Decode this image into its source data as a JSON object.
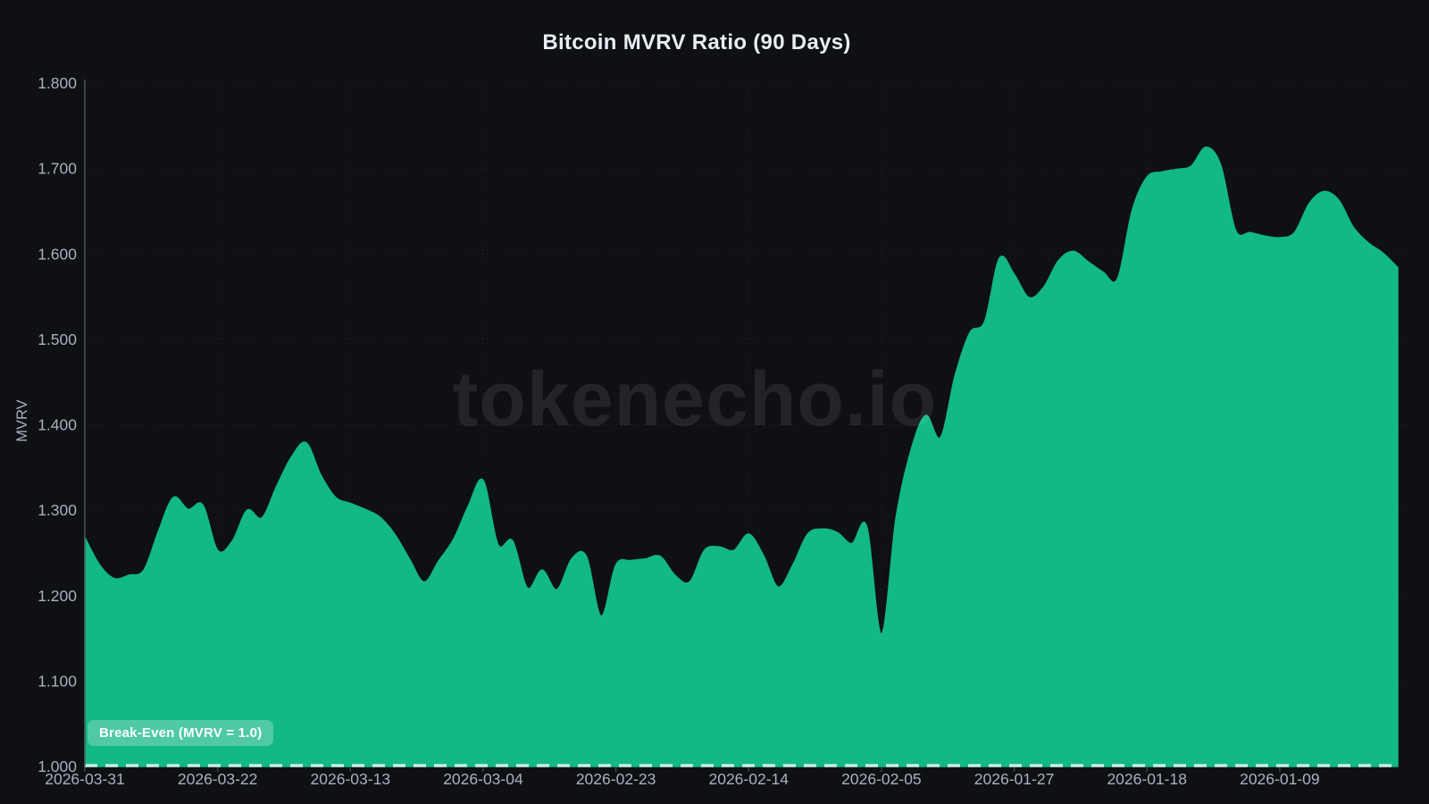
{
  "title": "Bitcoin MVRV Ratio (90 Days)",
  "watermark": "tokenecho.io",
  "break_even_label": "Break-Even (MVRV = 1.0)",
  "colors": {
    "background": "#0e1014",
    "area_fill": "#12b886",
    "grid_line": "rgba(255,255,255,0.09)",
    "y_axis_line": "#4b525c",
    "tick_text": "#a9b1bc",
    "title_text": "#e7edf3",
    "break_even_dash": "rgba(245,250,247,0.8)",
    "watermark_text": "rgba(255,255,255,0.085)",
    "pill_background": "rgba(255,255,255,0.26)"
  },
  "chart_data": {
    "type": "area",
    "title": "Bitcoin MVRV Ratio (90 Days)",
    "xlabel": "",
    "ylabel": "MVRV",
    "ylim": [
      1.0,
      1.8
    ],
    "grid": true,
    "x_axis_note": "time axis reversed: newest date on left",
    "y_ticks": [
      1.0,
      1.1,
      1.2,
      1.3,
      1.4,
      1.5,
      1.6,
      1.7,
      1.8
    ],
    "y_tick_labels": [
      "1.000",
      "1.100",
      "1.200",
      "1.300",
      "1.400",
      "1.500",
      "1.600",
      "1.700",
      "1.800"
    ],
    "x_tick_labels": [
      "2026-03-31",
      "2026-03-22",
      "2026-03-13",
      "2026-03-04",
      "2026-02-23",
      "2026-02-14",
      "2026-02-05",
      "2026-01-27",
      "2026-01-18",
      "2026-01-09"
    ],
    "x_tick_indices": [
      0,
      9,
      18,
      27,
      36,
      45,
      54,
      63,
      72,
      81
    ],
    "break_even_level": 1.0,
    "x": [
      "2026-03-31",
      "2026-03-30",
      "2026-03-29",
      "2026-03-28",
      "2026-03-27",
      "2026-03-26",
      "2026-03-25",
      "2026-03-24",
      "2026-03-23",
      "2026-03-22",
      "2026-03-21",
      "2026-03-20",
      "2026-03-19",
      "2026-03-18",
      "2026-03-17",
      "2026-03-16",
      "2026-03-15",
      "2026-03-14",
      "2026-03-13",
      "2026-03-12",
      "2026-03-11",
      "2026-03-10",
      "2026-03-09",
      "2026-03-08",
      "2026-03-07",
      "2026-03-06",
      "2026-03-05",
      "2026-03-04",
      "2026-03-03",
      "2026-03-02",
      "2026-03-01",
      "2026-02-28",
      "2026-02-27",
      "2026-02-26",
      "2026-02-25",
      "2026-02-24",
      "2026-02-23",
      "2026-02-22",
      "2026-02-21",
      "2026-02-20",
      "2026-02-19",
      "2026-02-18",
      "2026-02-17",
      "2026-02-16",
      "2026-02-15",
      "2026-02-14",
      "2026-02-13",
      "2026-02-12",
      "2026-02-11",
      "2026-02-10",
      "2026-02-09",
      "2026-02-08",
      "2026-02-07",
      "2026-02-06",
      "2026-02-05",
      "2026-02-04",
      "2026-02-03",
      "2026-02-02",
      "2026-02-01",
      "2026-01-31",
      "2026-01-30",
      "2026-01-29",
      "2026-01-28",
      "2026-01-27",
      "2026-01-26",
      "2026-01-25",
      "2026-01-24",
      "2026-01-23",
      "2026-01-22",
      "2026-01-21",
      "2026-01-20",
      "2026-01-19",
      "2026-01-18",
      "2026-01-17",
      "2026-01-16",
      "2026-01-15",
      "2026-01-14",
      "2026-01-13",
      "2026-01-12",
      "2026-01-11",
      "2026-01-10",
      "2026-01-09",
      "2026-01-08",
      "2026-01-07",
      "2026-01-06",
      "2026-01-05",
      "2026-01-04",
      "2026-01-03",
      "2026-01-02",
      "2026-01-01"
    ],
    "values": [
      1.268,
      1.236,
      1.22,
      1.224,
      1.23,
      1.276,
      1.315,
      1.301,
      1.306,
      1.253,
      1.264,
      1.3,
      1.291,
      1.328,
      1.362,
      1.379,
      1.341,
      1.315,
      1.308,
      1.301,
      1.292,
      1.272,
      1.243,
      1.216,
      1.241,
      1.266,
      1.305,
      1.335,
      1.26,
      1.264,
      1.209,
      1.23,
      1.207,
      1.243,
      1.246,
      1.176,
      1.236,
      1.241,
      1.243,
      1.246,
      1.224,
      1.216,
      1.253,
      1.257,
      1.253,
      1.272,
      1.247,
      1.21,
      1.236,
      1.272,
      1.278,
      1.274,
      1.261,
      1.281,
      1.155,
      1.292,
      1.37,
      1.411,
      1.385,
      1.458,
      1.508,
      1.521,
      1.595,
      1.576,
      1.549,
      1.561,
      1.592,
      1.603,
      1.591,
      1.579,
      1.571,
      1.651,
      1.69,
      1.696,
      1.699,
      1.703,
      1.725,
      1.704,
      1.628,
      1.625,
      1.621,
      1.619,
      1.625,
      1.659,
      1.673,
      1.663,
      1.631,
      1.613,
      1.601,
      1.584
    ]
  }
}
